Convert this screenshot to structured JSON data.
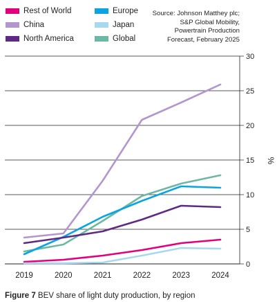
{
  "legend": [
    {
      "name": "Rest of World",
      "color": "#e4007c"
    },
    {
      "name": "Europe",
      "color": "#0aa5e1"
    },
    {
      "name": "China",
      "color": "#b296cc"
    },
    {
      "name": "Japan",
      "color": "#a8d8f0"
    },
    {
      "name": "North America",
      "color": "#5f2a84"
    },
    {
      "name": "Global",
      "color": "#6cb8a5"
    }
  ],
  "source_lines": [
    "Source: Johnson Matthey plc;",
    "S&P Global Mobility,",
    "Powertrain Production",
    "Forecast, February 2025"
  ],
  "caption": {
    "figure": "Figure 7",
    "text": " BEV share of light duty production, by region"
  },
  "chart_data": {
    "type": "line",
    "x": [
      "2019",
      "2020",
      "2021",
      "2022",
      "2023",
      "2024"
    ],
    "ylabel": "%",
    "ylim": [
      0,
      30
    ],
    "yticks": [
      "0",
      "5",
      "10",
      "15",
      "20",
      "25",
      "30"
    ],
    "grid": true,
    "y_axis_side": "right",
    "legend_position": "top-left",
    "series": [
      {
        "name": "China",
        "color": "#b296cc",
        "values": [
          3.8,
          4.4,
          12.0,
          20.8,
          23.3,
          25.9
        ]
      },
      {
        "name": "Global",
        "color": "#6cb8a5",
        "values": [
          1.8,
          2.8,
          6.2,
          9.8,
          11.6,
          12.8
        ]
      },
      {
        "name": "Europe",
        "color": "#0aa5e1",
        "values": [
          1.4,
          3.9,
          6.8,
          9.1,
          11.2,
          11.0
        ]
      },
      {
        "name": "North America",
        "color": "#5f2a84",
        "values": [
          3.0,
          3.8,
          4.7,
          6.4,
          8.4,
          8.2
        ]
      },
      {
        "name": "Rest of World",
        "color": "#e4007c",
        "values": [
          0.3,
          0.6,
          1.2,
          2.0,
          3.0,
          3.5
        ]
      },
      {
        "name": "Japan",
        "color": "#a8d8f0",
        "values": [
          0.1,
          0.1,
          0.2,
          1.2,
          2.3,
          2.2
        ]
      }
    ]
  }
}
